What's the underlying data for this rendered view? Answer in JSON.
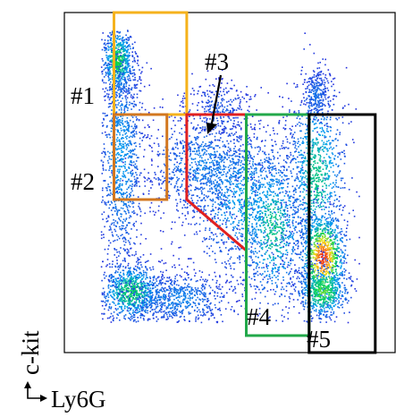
{
  "chart_data": {
    "type": "scatter",
    "title": "",
    "xlabel": "Ly6G",
    "ylabel": "c-kit",
    "grid": false,
    "legend": "none",
    "populations": [
      {
        "name": "c-kit-high Ly6G-low cluster",
        "x": 0.16,
        "y": 0.86,
        "density": "medium"
      },
      {
        "name": "Ly6G-low column",
        "x": 0.18,
        "y": 0.55,
        "density": "low"
      },
      {
        "name": "double-low cluster",
        "x": 0.18,
        "y": 0.17,
        "density": "medium"
      },
      {
        "name": "Ly6G-high c-kit-low cluster",
        "x": 0.78,
        "y": 0.28,
        "density": "high"
      },
      {
        "name": "intermediate band",
        "x": 0.5,
        "y": 0.45,
        "density": "low"
      }
    ],
    "gates": [
      {
        "label": "#1",
        "color": "#f5b21c",
        "shape": "rectangle",
        "x_range": [
          0.15,
          0.37
        ],
        "y_range": [
          0.7,
          1.0
        ]
      },
      {
        "label": "#2",
        "color": "#d2771f",
        "shape": "rectangle",
        "x_range": [
          0.15,
          0.31
        ],
        "y_range": [
          0.45,
          0.7
        ]
      },
      {
        "label": "#3",
        "color": "#e02020",
        "shape": "polygon",
        "x_range": [
          0.37,
          0.55
        ],
        "y_range": [
          0.3,
          0.7
        ]
      },
      {
        "label": "#4",
        "color": "#22a84a",
        "shape": "rectangle",
        "x_range": [
          0.55,
          0.74
        ],
        "y_range": [
          0.05,
          0.7
        ]
      },
      {
        "label": "#5",
        "color": "#000000",
        "shape": "rectangle",
        "x_range": [
          0.74,
          0.94
        ],
        "y_range": [
          0.0,
          0.7
        ]
      }
    ]
  }
}
